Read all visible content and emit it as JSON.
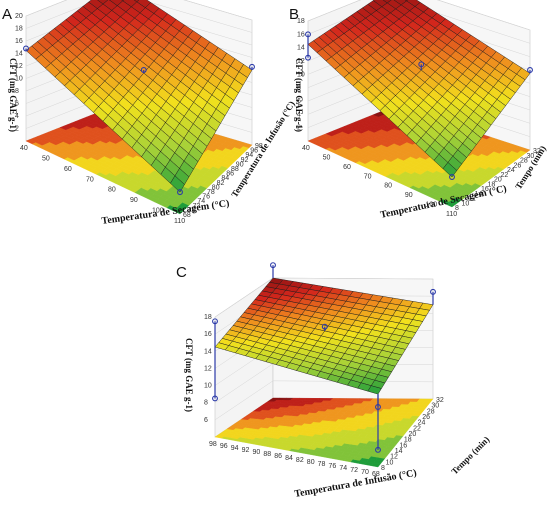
{
  "figure": {
    "panels": [
      "A",
      "B",
      "C"
    ]
  },
  "colors": {
    "low": "#1e9d3a",
    "mid_low": "#a8d238",
    "mid": "#f2e11d",
    "mid_high": "#ef8a1e",
    "high": "#d3261c",
    "top": "#8a1212",
    "grid": "#1a1a1a",
    "points": "#2b3aa8"
  },
  "chart_data": [
    {
      "type": "surface3d",
      "panel": "A",
      "xlabel": "Temperatura de Secagem (°C)",
      "ylabel": "Temperatura de Infusão (°C)",
      "zlabel": "CFT (mg GAE g-1)",
      "x_ticks": [
        "40",
        "50",
        "60",
        "70",
        "80",
        "90",
        "100",
        "110"
      ],
      "y_ticks": [
        "68",
        "70",
        "72",
        "74",
        "76",
        "78",
        "80",
        "82",
        "84",
        "86",
        "88",
        "90",
        "92",
        "94",
        "96",
        "98"
      ],
      "z_ticks": [
        "2",
        "4",
        "6",
        "8",
        "10",
        "12",
        "14",
        "16",
        "18",
        "20"
      ],
      "xlim": [
        40,
        110
      ],
      "ylim": [
        68,
        98
      ],
      "zlim": [
        0,
        20
      ],
      "surface_corners": {
        "x_min_y_min": 14.5,
        "x_max_y_min": 3.5,
        "x_min_y_max": 20.0,
        "x_max_y_max": 12.0
      },
      "points": [
        {
          "x": 40,
          "y": 68,
          "z": 14.8
        },
        {
          "x": 40,
          "y": 98,
          "z": 20.0
        },
        {
          "x": 110,
          "y": 98,
          "z": 12.5
        },
        {
          "x": 75,
          "y": 83,
          "z": 13.0
        },
        {
          "x": 110,
          "y": 68,
          "z": 3.5
        }
      ]
    },
    {
      "type": "surface3d",
      "panel": "B",
      "xlabel": "Temperatura de Secagem (°C)",
      "ylabel": "Tempo (min)",
      "zlabel": "CFT (mg GAE g-1)",
      "x_ticks": [
        "40",
        "50",
        "60",
        "70",
        "80",
        "90",
        "100",
        "110"
      ],
      "y_ticks": [
        "8",
        "10",
        "12",
        "14",
        "16",
        "18",
        "20",
        "22",
        "24",
        "26",
        "28",
        "30",
        "32"
      ],
      "z_ticks": [
        "2",
        "4",
        "6",
        "8",
        "10",
        "12",
        "14",
        "16",
        "18"
      ],
      "xlim": [
        40,
        110
      ],
      "ylim": [
        8,
        32
      ],
      "zlim": [
        0,
        18
      ],
      "surface_corners": {
        "x_min_y_min": 14.5,
        "x_max_y_min": 4.5,
        "x_min_y_max": 18.0,
        "x_max_y_max": 11.5
      },
      "points": [
        {
          "x": 40,
          "y": 8,
          "z": 12.5
        },
        {
          "x": 40,
          "y": 8,
          "z": 16.0
        },
        {
          "x": 40,
          "y": 32,
          "z": 18.0
        },
        {
          "x": 110,
          "y": 32,
          "z": 12.0
        },
        {
          "x": 75,
          "y": 20,
          "z": 13.0
        },
        {
          "x": 110,
          "y": 8,
          "z": 4.5
        }
      ]
    },
    {
      "type": "surface3d",
      "panel": "C",
      "xlabel": "Temperatura de Infusão (°C)",
      "ylabel": "Tempo (min)",
      "zlabel": "CFT (mg GAE g-1)",
      "x_ticks": [
        "98",
        "96",
        "94",
        "92",
        "90",
        "88",
        "86",
        "84",
        "82",
        "80",
        "78",
        "76",
        "74",
        "72",
        "70",
        "68"
      ],
      "y_ticks": [
        "8",
        "10",
        "12",
        "14",
        "16",
        "18",
        "20",
        "22",
        "24",
        "26",
        "28",
        "30",
        "32"
      ],
      "z_ticks": [
        "6",
        "8",
        "10",
        "12",
        "14",
        "16",
        "18"
      ],
      "xlim": [
        98,
        68
      ],
      "ylim": [
        8,
        32
      ],
      "zlim": [
        4,
        18
      ],
      "surface_corners": {
        "x_min_y_min": 14.5,
        "x_max_y_min": 12.5,
        "x_min_y_max": 18.0,
        "x_max_y_max": 15.0
      },
      "points": [
        {
          "x": 98,
          "y": 8,
          "z": 8.5
        },
        {
          "x": 98,
          "y": 8,
          "z": 17.5
        },
        {
          "x": 98,
          "y": 32,
          "z": 19.5
        },
        {
          "x": 68,
          "y": 32,
          "z": 16.5
        },
        {
          "x": 68,
          "y": 8,
          "z": 6.0
        },
        {
          "x": 68,
          "y": 8,
          "z": 11.0
        },
        {
          "x": 83,
          "y": 20,
          "z": 15.5
        }
      ]
    }
  ]
}
